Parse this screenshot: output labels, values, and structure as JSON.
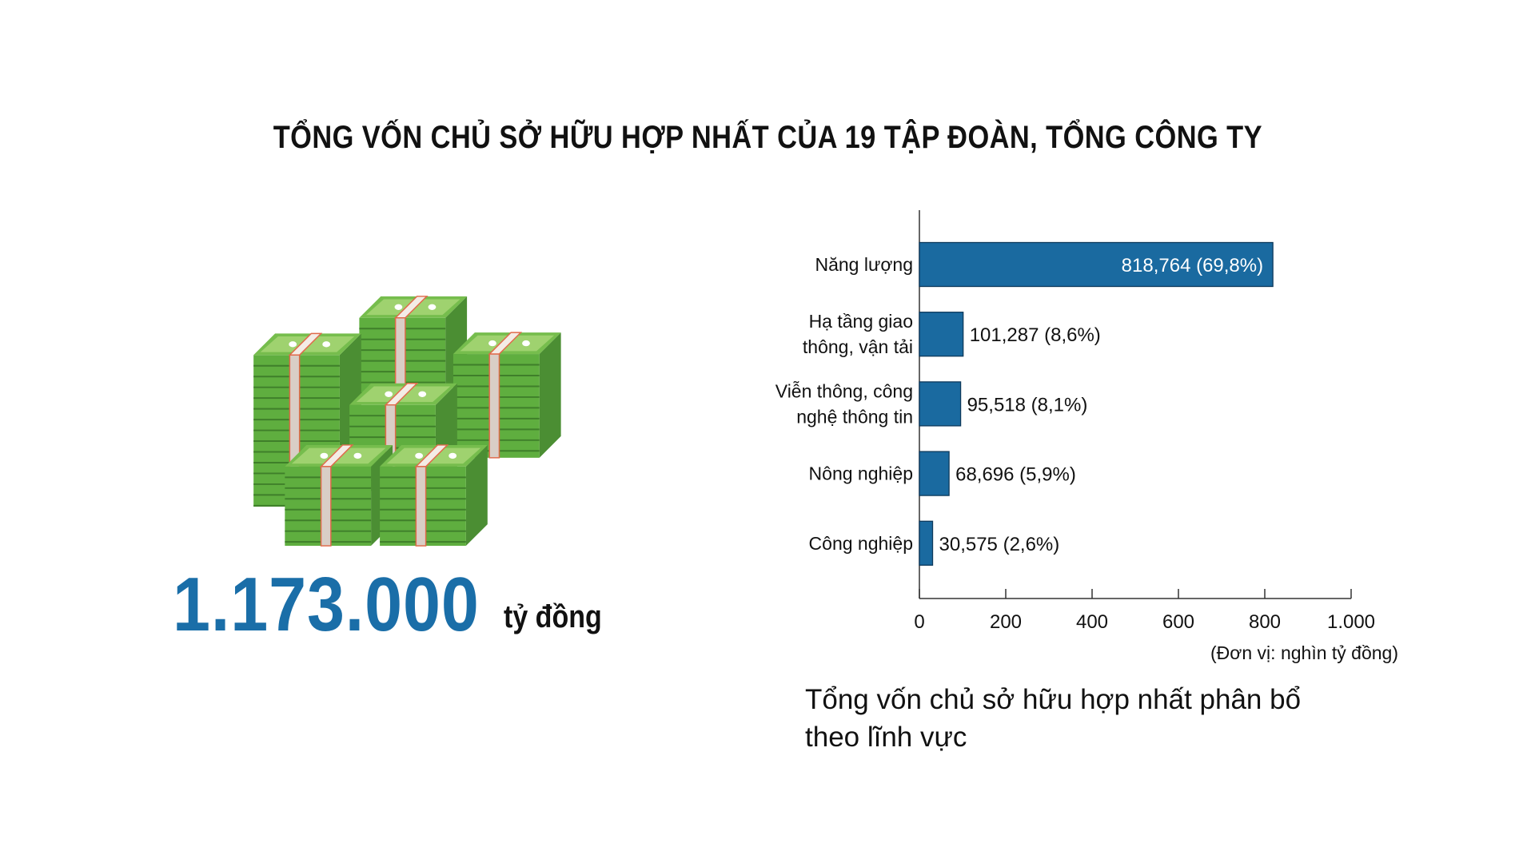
{
  "title": "TỔNG VỐN CHỦ SỞ HỮU HỢP NHẤT CỦA 19 TẬP ĐOÀN, TỔNG CÔNG TY",
  "total": {
    "value": "1.173.000",
    "unit": "tỷ đồng",
    "color": "#1a6ea8",
    "icon": "money-stacks-icon"
  },
  "chart_data": {
    "type": "bar",
    "orientation": "horizontal",
    "categories": [
      [
        "Năng lượng"
      ],
      [
        "Hạ tầng giao",
        "thông, vận tải"
      ],
      [
        "Viễn thông, công",
        "nghệ thông tin"
      ],
      [
        "Nông nghiệp"
      ],
      [
        "Công nghiệp"
      ]
    ],
    "values": [
      818.764,
      101.287,
      95.518,
      68.696,
      30.575
    ],
    "data_labels": [
      "818,764 (69,8%)",
      "101,287 (8,6%)",
      "95,518 (8,1%)",
      "68,696 (5,9%)",
      "30,575 (2,6%)"
    ],
    "xlim": [
      0,
      1000
    ],
    "xticks": [
      0,
      200,
      400,
      600,
      800,
      1000
    ],
    "xtick_labels": [
      "0",
      "200",
      "400",
      "600",
      "800",
      "1.000"
    ],
    "unit_label": "(Đơn vị: nghìn tỷ đồng)",
    "bar_color": "#1a6aa0",
    "grid": false
  },
  "subtitle": [
    "Tổng vốn chủ sở hữu hợp nhất phân bổ",
    "theo lĩnh vực"
  ]
}
